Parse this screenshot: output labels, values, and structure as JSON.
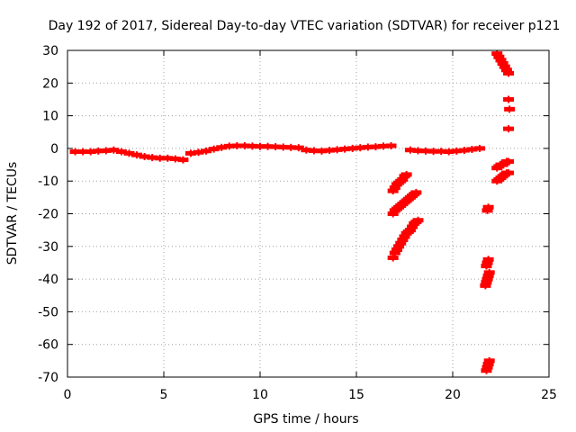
{
  "chart_data": {
    "type": "scatter",
    "title": "Day 192 of 2017, Sidereal Day-to-day VTEC variation (SDTVAR) for receiver p121",
    "xlabel": "GPS time / hours",
    "ylabel": "SDTVAR / TECUs",
    "xlim": [
      0,
      25
    ],
    "ylim": [
      -70,
      30
    ],
    "x_ticks": [
      0,
      5,
      10,
      15,
      20,
      25
    ],
    "y_ticks": [
      -70,
      -60,
      -50,
      -40,
      -30,
      -20,
      -10,
      0,
      10,
      20,
      30
    ],
    "x_tick_labels": [
      "0",
      "5",
      "10",
      "15",
      "20",
      "25"
    ],
    "y_tick_labels": [
      "-70",
      "-60",
      "-50",
      "-40",
      "-30",
      "-20",
      "-10",
      "0",
      "10",
      "20",
      "30"
    ],
    "grid": true,
    "legend": "none",
    "marker": "plus",
    "color": "#ff0000",
    "series": [
      {
        "x": [
          0.4,
          0.8,
          1.2,
          1.6,
          2.0,
          2.4,
          2.8,
          3.2,
          3.6,
          4.0,
          4.4,
          4.8,
          5.2,
          5.6,
          6.0,
          6.4,
          6.8,
          7.2,
          7.6,
          8.0,
          8.4,
          8.8,
          9.2,
          9.6,
          10.0,
          10.4,
          10.8,
          11.2,
          11.6,
          12.0,
          12.4,
          12.8,
          13.2,
          13.6,
          14.0,
          14.4,
          14.8,
          15.2,
          15.6,
          16.0,
          16.4,
          16.8,
          17.8,
          18.2,
          18.6,
          19.0,
          19.4,
          19.8,
          20.2,
          20.6,
          21.0,
          21.4,
          16.9,
          17.0,
          17.1,
          17.2,
          17.3,
          17.4,
          17.5,
          17.6,
          16.9,
          17.0,
          17.1,
          17.2,
          17.3,
          17.4,
          17.5,
          17.6,
          17.7,
          17.8,
          17.9,
          18.0,
          18.1,
          16.9,
          17.0,
          17.1,
          17.2,
          17.3,
          17.4,
          17.5,
          17.6,
          17.7,
          17.8,
          17.9,
          18.0,
          18.1,
          18.2,
          21.75,
          21.8,
          21.85,
          21.9,
          21.7,
          21.75,
          21.8,
          21.85,
          21.9,
          21.75,
          21.8,
          21.85,
          21.8,
          21.85,
          22.3,
          22.4,
          22.5,
          22.6,
          22.7,
          22.8,
          22.9,
          22.9,
          22.95,
          22.3,
          22.4,
          22.5,
          22.6,
          22.7,
          22.8,
          22.9,
          22.3,
          22.4,
          22.5,
          22.6,
          22.7,
          22.8,
          22.9,
          22.9
        ],
        "y": [
          -1,
          -1,
          -1,
          -0.8,
          -0.7,
          -0.5,
          -1,
          -1.5,
          -2,
          -2.5,
          -2.8,
          -3,
          -3,
          -3.2,
          -3.5,
          -1.5,
          -1.2,
          -0.8,
          -0.2,
          0.3,
          0.7,
          0.8,
          0.8,
          0.7,
          0.6,
          0.6,
          0.5,
          0.4,
          0.3,
          0.2,
          -0.5,
          -0.7,
          -0.8,
          -0.6,
          -0.4,
          -0.2,
          0.0,
          0.2,
          0.4,
          0.5,
          0.7,
          0.8,
          -0.5,
          -0.7,
          -0.8,
          -0.9,
          -0.9,
          -1,
          -0.8,
          -0.6,
          -0.3,
          0.0,
          -13,
          -12,
          -11,
          -10.5,
          -10,
          -9.5,
          -8.5,
          -8,
          -20,
          -19,
          -18.5,
          -18,
          -17.5,
          -17,
          -16.5,
          -16,
          -15.5,
          -15,
          -14.5,
          -14,
          -13.5,
          -33.5,
          -32,
          -31,
          -30,
          -29,
          -28,
          -27,
          -26,
          -25.5,
          -25,
          -24,
          -23,
          -22.5,
          -22,
          -68,
          -67,
          -66,
          -65,
          -42,
          -41,
          -40,
          -39,
          -38,
          -36,
          -35,
          -34,
          -19,
          -18,
          29,
          28,
          27,
          26,
          25,
          24,
          23,
          15,
          12,
          -6,
          -5.5,
          -5,
          -5,
          -4.5,
          -4,
          -4,
          -10,
          -9.5,
          -9,
          -8.5,
          -8,
          -7.5,
          -7.5,
          6
        ]
      }
    ]
  }
}
